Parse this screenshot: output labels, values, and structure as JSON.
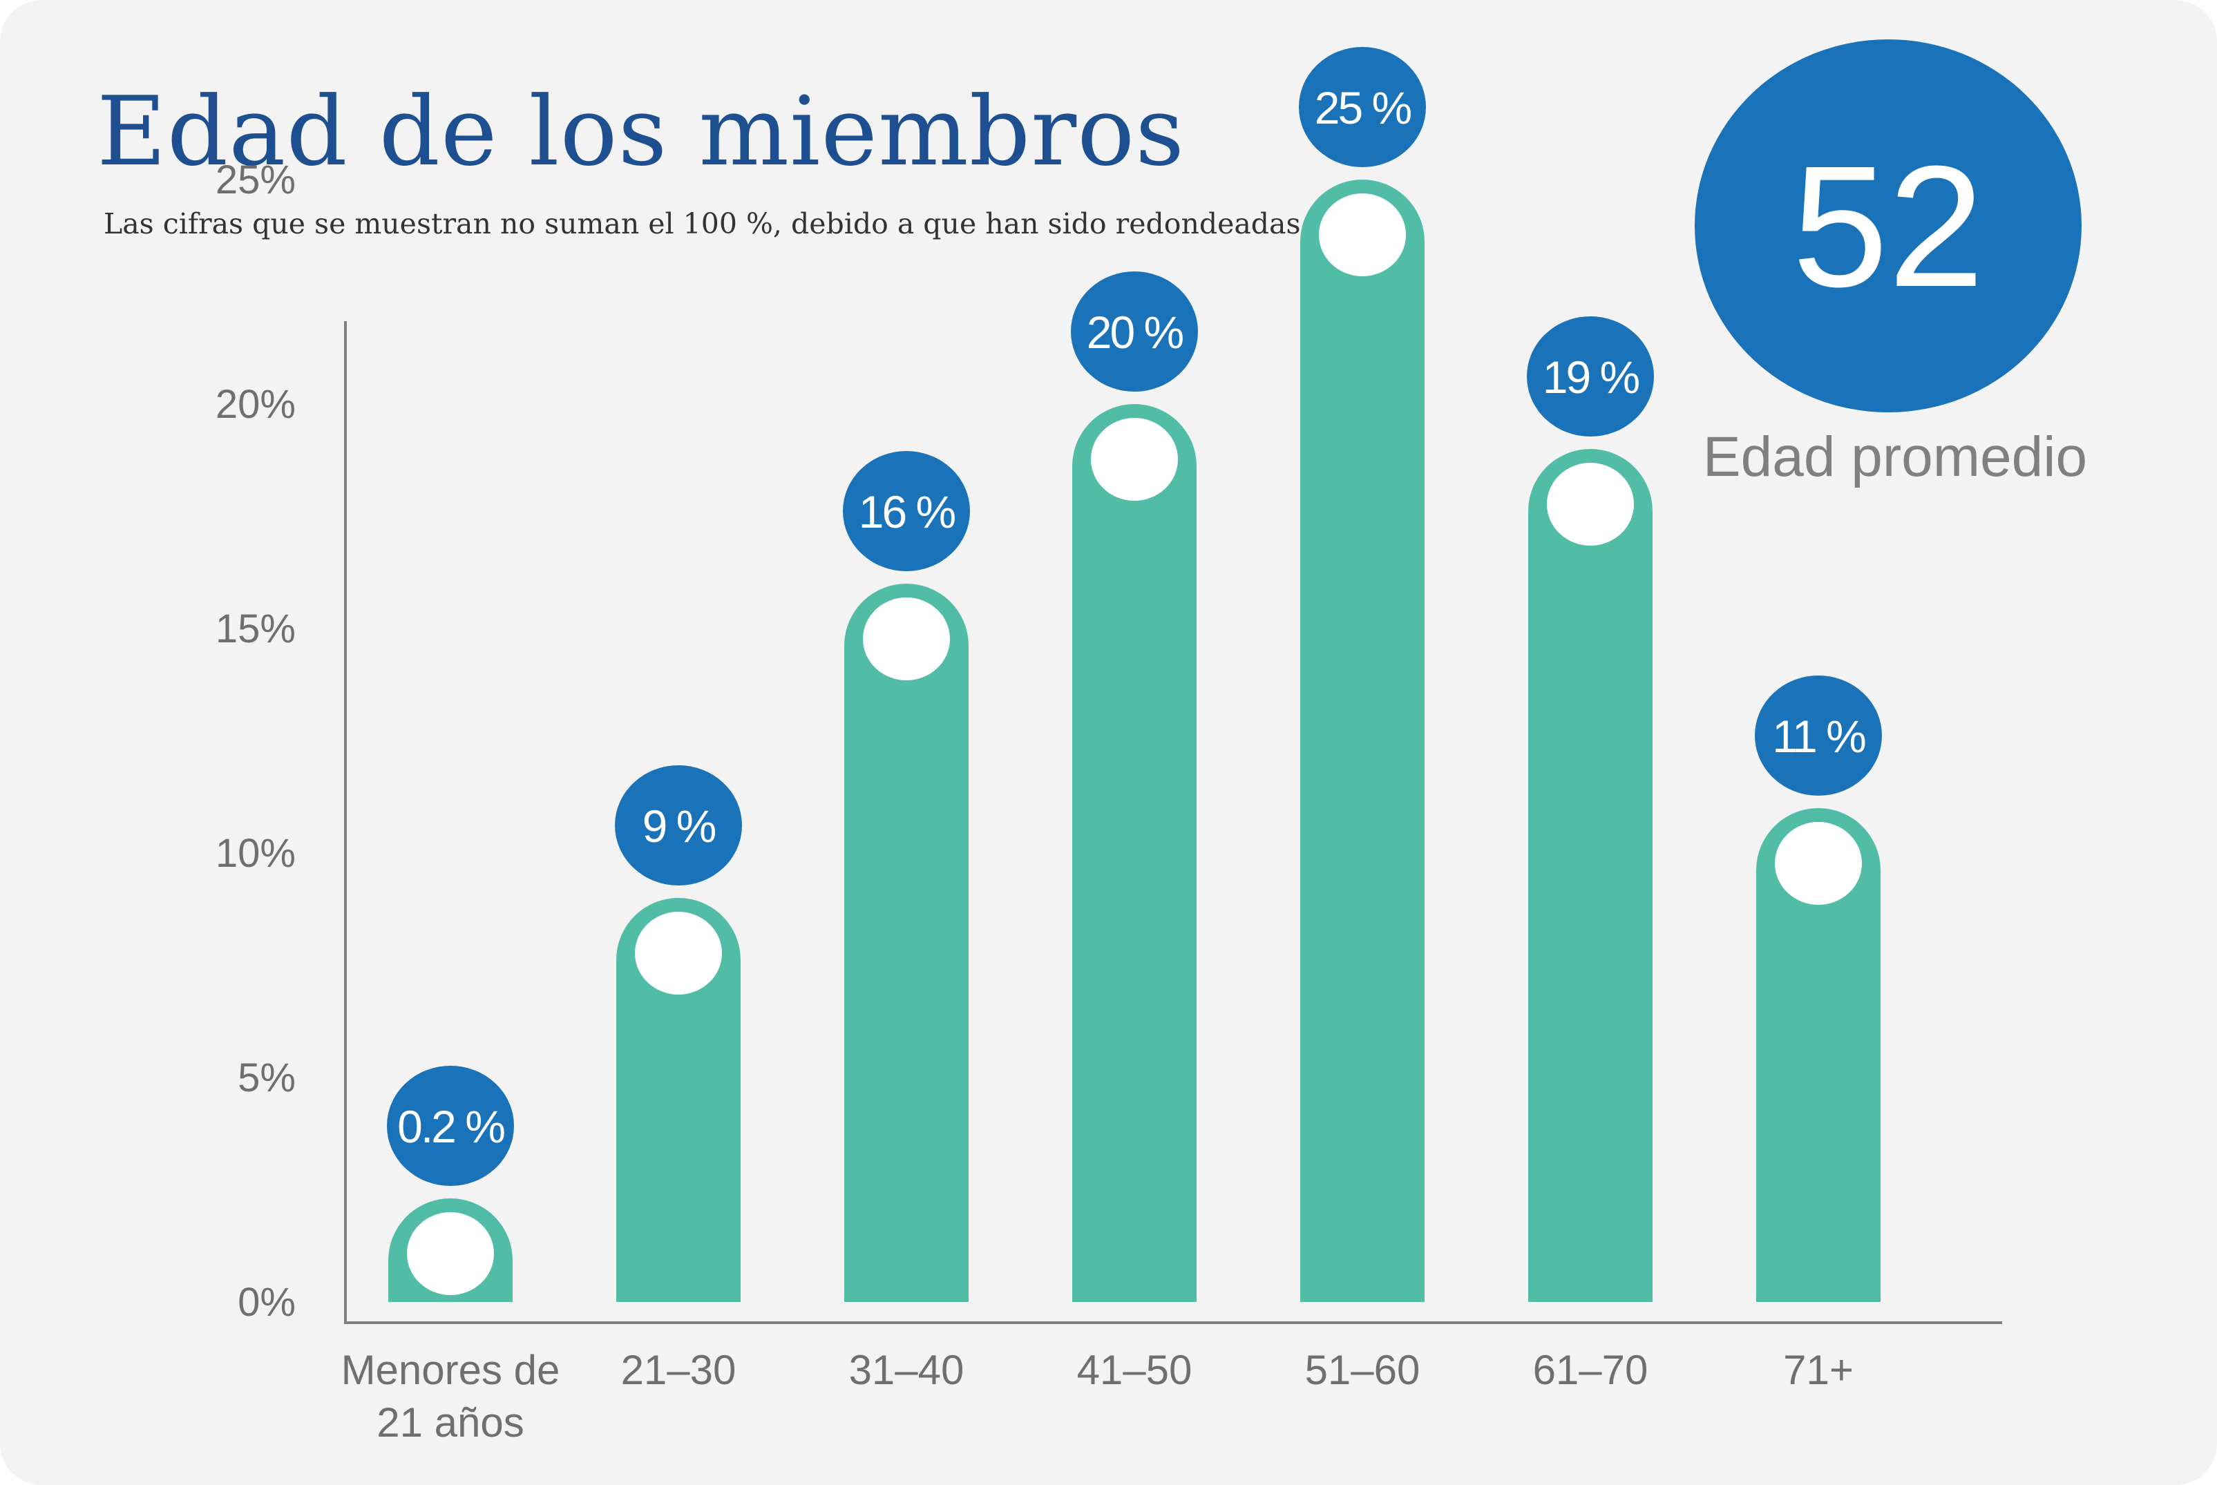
{
  "header": {
    "title": "Edad de los miembros",
    "subtitle": "Las cifras que se muestran no suman el 100 %, debido a que han sido redondeadas."
  },
  "average": {
    "value": "52",
    "label": "Edad promedio"
  },
  "colors": {
    "background": "#f3f3f3",
    "title": "#1d4f91",
    "bar": "#52bda6",
    "label_bubble": "#1a72b8",
    "dot": "#ffffff",
    "axis": "#7f7f7f",
    "tick_text": "#6f6f6f"
  },
  "chart_data": {
    "type": "bar",
    "categories": [
      "Menores de 21 años",
      "21–30",
      "31–40",
      "41–50",
      "51–60",
      "61–70",
      "71+"
    ],
    "category_lines": [
      [
        "Menores de",
        "21 años"
      ],
      [
        "21–30"
      ],
      [
        "31–40"
      ],
      [
        "41–50"
      ],
      [
        "51–60"
      ],
      [
        "61–70"
      ],
      [
        "71+"
      ]
    ],
    "values": [
      0.2,
      9,
      16,
      20,
      25,
      19,
      11
    ],
    "data_labels": [
      "0.2 %",
      "9 %",
      "16 %",
      "20 %",
      "25 %",
      "19 %",
      "11 %"
    ],
    "y_ticks": [
      "0%",
      "5%",
      "10%",
      "15%",
      "20%",
      "25%"
    ],
    "ylim": [
      0,
      25
    ],
    "title": "",
    "xlabel": "",
    "ylabel": "",
    "grid": false,
    "legend": "none"
  }
}
